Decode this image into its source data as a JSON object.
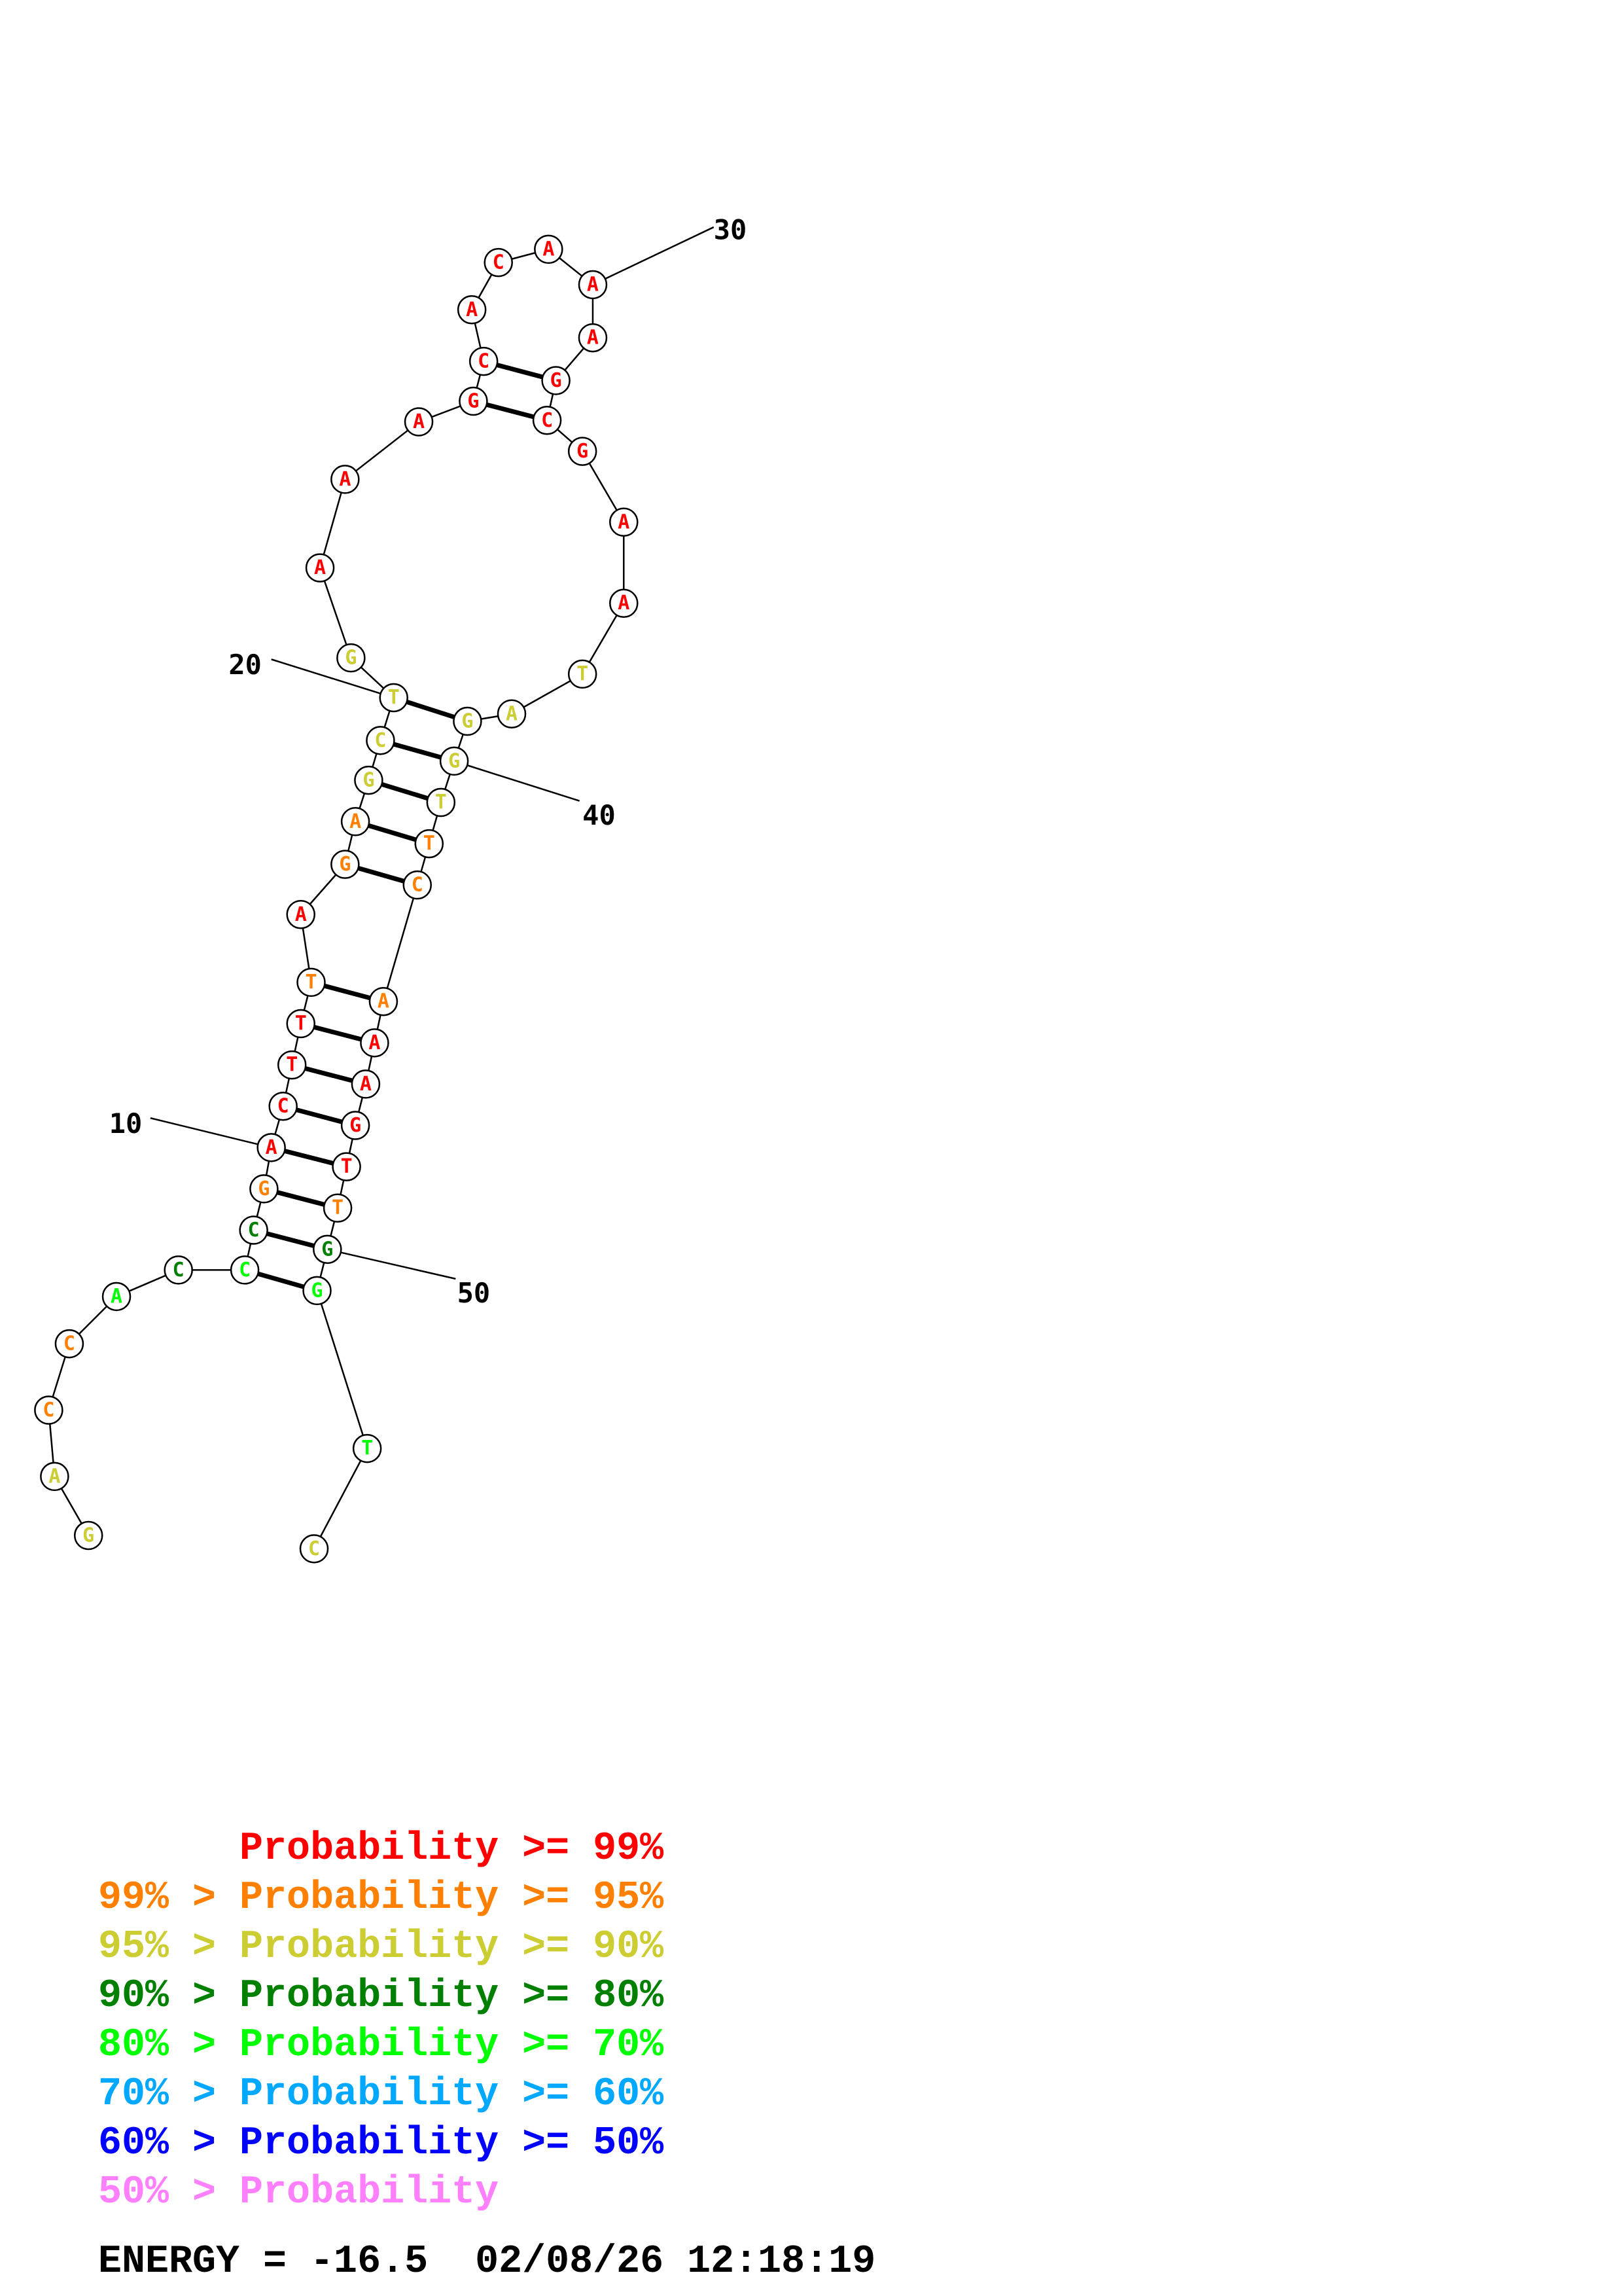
{
  "colors": {
    "ge99": "#ff0000",
    "ge95": "#ff8000",
    "ge90": "#cccc33",
    "ge80": "#008000",
    "ge70": "#00ff00",
    "ge60": "#00a8ff",
    "ge50": "#0000ff",
    "lt50": "#ff80ff"
  },
  "bases": [
    {
      "i": 1,
      "b": "G",
      "c": "ge90"
    },
    {
      "i": 2,
      "b": "A",
      "c": "ge90"
    },
    {
      "i": 3,
      "b": "C",
      "c": "ge95"
    },
    {
      "i": 4,
      "b": "C",
      "c": "ge95"
    },
    {
      "i": 5,
      "b": "A",
      "c": "ge70"
    },
    {
      "i": 6,
      "b": "C",
      "c": "ge80"
    },
    {
      "i": 7,
      "b": "C",
      "c": "ge70"
    },
    {
      "i": 8,
      "b": "C",
      "c": "ge80"
    },
    {
      "i": 9,
      "b": "G",
      "c": "ge95"
    },
    {
      "i": 10,
      "b": "A",
      "c": "ge99"
    },
    {
      "i": 11,
      "b": "C",
      "c": "ge99"
    },
    {
      "i": 12,
      "b": "T",
      "c": "ge99"
    },
    {
      "i": 13,
      "b": "T",
      "c": "ge99"
    },
    {
      "i": 14,
      "b": "T",
      "c": "ge95"
    },
    {
      "i": 15,
      "b": "A",
      "c": "ge99"
    },
    {
      "i": 16,
      "b": "G",
      "c": "ge95"
    },
    {
      "i": 17,
      "b": "A",
      "c": "ge95"
    },
    {
      "i": 18,
      "b": "G",
      "c": "ge90"
    },
    {
      "i": 19,
      "b": "C",
      "c": "ge90"
    },
    {
      "i": 20,
      "b": "T",
      "c": "ge90"
    },
    {
      "i": 21,
      "b": "G",
      "c": "ge90"
    },
    {
      "i": 22,
      "b": "A",
      "c": "ge99"
    },
    {
      "i": 23,
      "b": "A",
      "c": "ge99"
    },
    {
      "i": 24,
      "b": "A",
      "c": "ge99"
    },
    {
      "i": 25,
      "b": "G",
      "c": "ge99"
    },
    {
      "i": 26,
      "b": "C",
      "c": "ge99"
    },
    {
      "i": 27,
      "b": "A",
      "c": "ge99"
    },
    {
      "i": 28,
      "b": "C",
      "c": "ge99"
    },
    {
      "i": 29,
      "b": "A",
      "c": "ge99"
    },
    {
      "i": 30,
      "b": "A",
      "c": "ge99"
    },
    {
      "i": 31,
      "b": "A",
      "c": "ge99"
    },
    {
      "i": 32,
      "b": "G",
      "c": "ge99"
    },
    {
      "i": 33,
      "b": "C",
      "c": "ge99"
    },
    {
      "i": 34,
      "b": "G",
      "c": "ge99"
    },
    {
      "i": 35,
      "b": "A",
      "c": "ge99"
    },
    {
      "i": 36,
      "b": "A",
      "c": "ge99"
    },
    {
      "i": 37,
      "b": "T",
      "c": "ge90"
    },
    {
      "i": 38,
      "b": "A",
      "c": "ge90"
    },
    {
      "i": 39,
      "b": "G",
      "c": "ge90"
    },
    {
      "i": 40,
      "b": "G",
      "c": "ge90"
    },
    {
      "i": 41,
      "b": "T",
      "c": "ge90"
    },
    {
      "i": 42,
      "b": "T",
      "c": "ge95"
    },
    {
      "i": 43,
      "b": "C",
      "c": "ge95"
    },
    {
      "i": 44,
      "b": "A",
      "c": "ge95"
    },
    {
      "i": 45,
      "b": "A",
      "c": "ge99"
    },
    {
      "i": 46,
      "b": "A",
      "c": "ge99"
    },
    {
      "i": 47,
      "b": "G",
      "c": "ge99"
    },
    {
      "i": 48,
      "b": "T",
      "c": "ge99"
    },
    {
      "i": 49,
      "b": "T",
      "c": "ge95"
    },
    {
      "i": 50,
      "b": "G",
      "c": "ge80"
    },
    {
      "i": 51,
      "b": "G",
      "c": "ge70"
    },
    {
      "i": 52,
      "b": "T",
      "c": "ge70"
    },
    {
      "i": 53,
      "b": "C",
      "c": "ge90"
    }
  ],
  "pairs": [
    [
      7,
      51
    ],
    [
      8,
      50
    ],
    [
      9,
      49
    ],
    [
      10,
      48
    ],
    [
      11,
      47
    ],
    [
      12,
      46
    ],
    [
      13,
      45
    ],
    [
      14,
      44
    ],
    [
      16,
      43
    ],
    [
      17,
      42
    ],
    [
      18,
      41
    ],
    [
      19,
      40
    ],
    [
      20,
      39
    ],
    [
      25,
      33
    ],
    [
      26,
      32
    ]
  ],
  "position_labels": [
    {
      "base": 10,
      "text": "10"
    },
    {
      "base": 20,
      "text": "20"
    },
    {
      "base": 30,
      "text": "30"
    },
    {
      "base": 40,
      "text": "40"
    },
    {
      "base": 50,
      "text": "50"
    }
  ],
  "legend": [
    {
      "prefix": "    ",
      "text": "Probability >= 99%",
      "c": "ge99"
    },
    {
      "prefix": "99% > ",
      "text": "Probability >= 95%",
      "c": "ge95"
    },
    {
      "prefix": "95% > ",
      "text": "Probability >= 90%",
      "c": "ge90"
    },
    {
      "prefix": "90% > ",
      "text": "Probability >= 80%",
      "c": "ge80"
    },
    {
      "prefix": "80% > ",
      "text": "Probability >= 70%",
      "c": "ge70"
    },
    {
      "prefix": "70% > ",
      "text": "Probability >= 60%",
      "c": "ge60"
    },
    {
      "prefix": "60% > ",
      "text": "Probability >= 50%",
      "c": "ge50"
    },
    {
      "prefix": "50% > ",
      "text": "Probability",
      "c": "lt50"
    }
  ],
  "footer": {
    "energy": "ENERGY = -16.5",
    "timestamp": "02/08/26 12:18:19"
  }
}
